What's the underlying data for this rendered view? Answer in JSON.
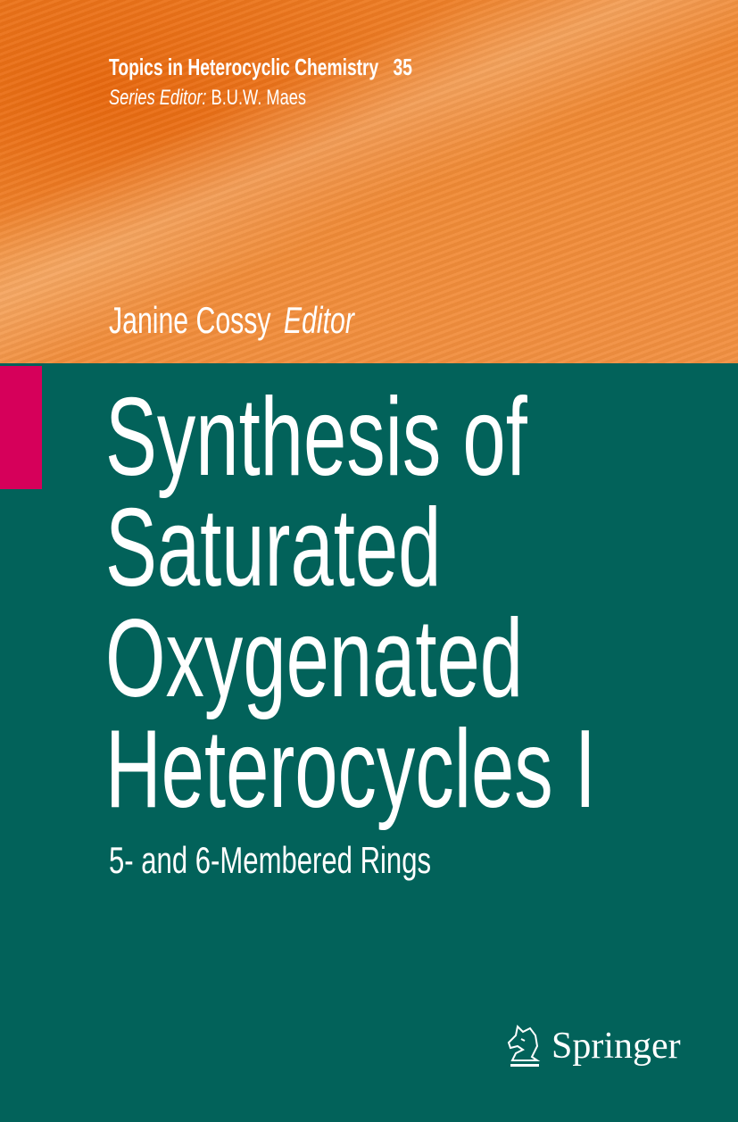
{
  "series": {
    "name": "Topics in Heterocyclic Chemistry",
    "volume": "35",
    "editor_label": "Series Editor:",
    "editor_name": "B.U.W. Maes"
  },
  "author": {
    "name": "Janine Cossy",
    "role": "Editor"
  },
  "title": {
    "lines": [
      "Synthesis of",
      "Saturated",
      "Oxygenated",
      "Heterocycles I"
    ],
    "subtitle": "5- and 6-Membered Rings"
  },
  "publisher": {
    "name": "Springer",
    "icon": "springer-horse-logo-icon"
  },
  "colors": {
    "orange": "#ef8430",
    "teal": "#02625a",
    "magenta": "#d6005a"
  }
}
